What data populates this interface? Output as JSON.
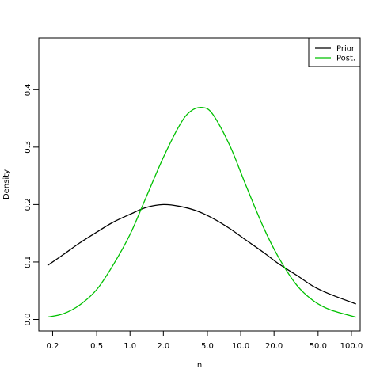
{
  "chart_data": {
    "type": "line",
    "xlabel": "n",
    "ylabel": "Density",
    "x_scale": "log",
    "xlim": [
      0.15,
      120
    ],
    "ylim": [
      -0.02,
      0.49
    ],
    "x_ticks": [
      0.2,
      0.5,
      1.0,
      2.0,
      5.0,
      10.0,
      20.0,
      50.0,
      100.0
    ],
    "x_tick_labels": [
      "0.2",
      "0.5",
      "1.0",
      "2.0",
      "5.0",
      "10.0",
      "20.0",
      "50.0",
      "100.0"
    ],
    "y_ticks": [
      0.0,
      0.1,
      0.2,
      0.3,
      0.4
    ],
    "y_tick_labels": [
      "0.0",
      "0.1",
      "0.2",
      "0.3",
      "0.4"
    ],
    "grid": false,
    "legend_position": "top-right",
    "series": [
      {
        "name": "Prior",
        "color": "#000000",
        "x": [
          0.18,
          0.25,
          0.35,
          0.5,
          0.7,
          1.0,
          1.4,
          2.0,
          2.8,
          4.0,
          5.6,
          8.0,
          11.0,
          16.0,
          22.0,
          32.0,
          45.0,
          64.0,
          110.0
        ],
        "y": [
          0.094,
          0.113,
          0.133,
          0.152,
          0.169,
          0.183,
          0.195,
          0.2,
          0.197,
          0.189,
          0.176,
          0.158,
          0.139,
          0.117,
          0.097,
          0.077,
          0.058,
          0.044,
          0.027
        ]
      },
      {
        "name": "Post.",
        "color": "#00c000",
        "x": [
          0.18,
          0.25,
          0.35,
          0.5,
          0.7,
          1.0,
          1.4,
          2.0,
          2.8,
          3.5,
          4.5,
          5.6,
          8.0,
          11.0,
          16.0,
          22.0,
          32.0,
          45.0,
          64.0,
          110.0
        ],
        "y": [
          0.004,
          0.01,
          0.025,
          0.052,
          0.094,
          0.148,
          0.213,
          0.282,
          0.338,
          0.362,
          0.369,
          0.357,
          0.302,
          0.236,
          0.161,
          0.108,
          0.06,
          0.033,
          0.017,
          0.004
        ]
      }
    ]
  }
}
